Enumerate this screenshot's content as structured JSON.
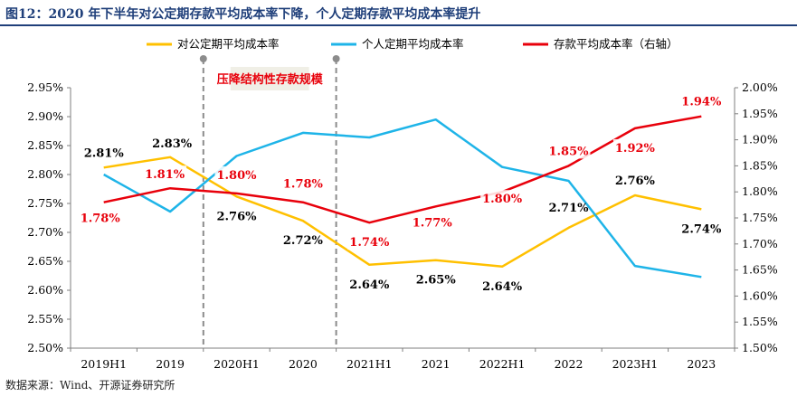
{
  "title": "图12：2020 年下半年对公定期存款平均成本率下降，个人定期存款平均成本率提升",
  "source": "数据来源：Wind、开源证券研究所",
  "chart_data": {
    "type": "line",
    "categories": [
      "2019H1",
      "2019",
      "2020H1",
      "2020",
      "2021H1",
      "2021",
      "2022H1",
      "2022",
      "2023H1",
      "2023"
    ],
    "y_left": {
      "min": 2.5,
      "max": 2.95,
      "step": 0.05,
      "ticks": [
        "2.50%",
        "2.55%",
        "2.60%",
        "2.65%",
        "2.70%",
        "2.75%",
        "2.80%",
        "2.85%",
        "2.90%",
        "2.95%"
      ]
    },
    "y_right": {
      "min": 1.5,
      "max": 2.0,
      "step": 0.05,
      "ticks": [
        "1.50%",
        "1.55%",
        "1.60%",
        "1.65%",
        "1.70%",
        "1.75%",
        "1.80%",
        "1.85%",
        "1.90%",
        "1.95%",
        "2.00%"
      ]
    },
    "series": [
      {
        "name": "对公定期平均成本率",
        "color": "#ffc000",
        "axis": "left",
        "values": [
          2.812,
          2.83,
          2.762,
          2.72,
          2.644,
          2.652,
          2.641,
          2.708,
          2.764,
          2.74
        ],
        "labels": [
          "2.81%",
          "2.83%",
          "2.76%",
          "2.72%",
          "2.64%",
          "2.65%",
          "2.64%",
          "2.71%",
          "2.76%",
          "2.74%"
        ]
      },
      {
        "name": "个人定期平均成本率",
        "color": "#1eb4e8",
        "axis": "left",
        "values": [
          2.8,
          2.736,
          2.832,
          2.872,
          2.864,
          2.895,
          2.813,
          2.789,
          2.642,
          2.623
        ]
      },
      {
        "name": "存款平均成本率（右轴）",
        "color": "#e8000b",
        "axis": "right",
        "values": [
          1.78,
          1.807,
          1.797,
          1.78,
          1.741,
          1.772,
          1.8,
          1.85,
          1.922,
          1.945
        ],
        "labels": [
          "1.78%",
          "1.81%",
          "1.80%",
          "1.78%",
          "1.74%",
          "1.77%",
          "1.80%",
          "1.85%",
          "1.92%",
          "1.94%"
        ]
      }
    ],
    "annotation": {
      "text": "压降结构性存款规模",
      "from_index": 2,
      "to_index": 4
    }
  }
}
